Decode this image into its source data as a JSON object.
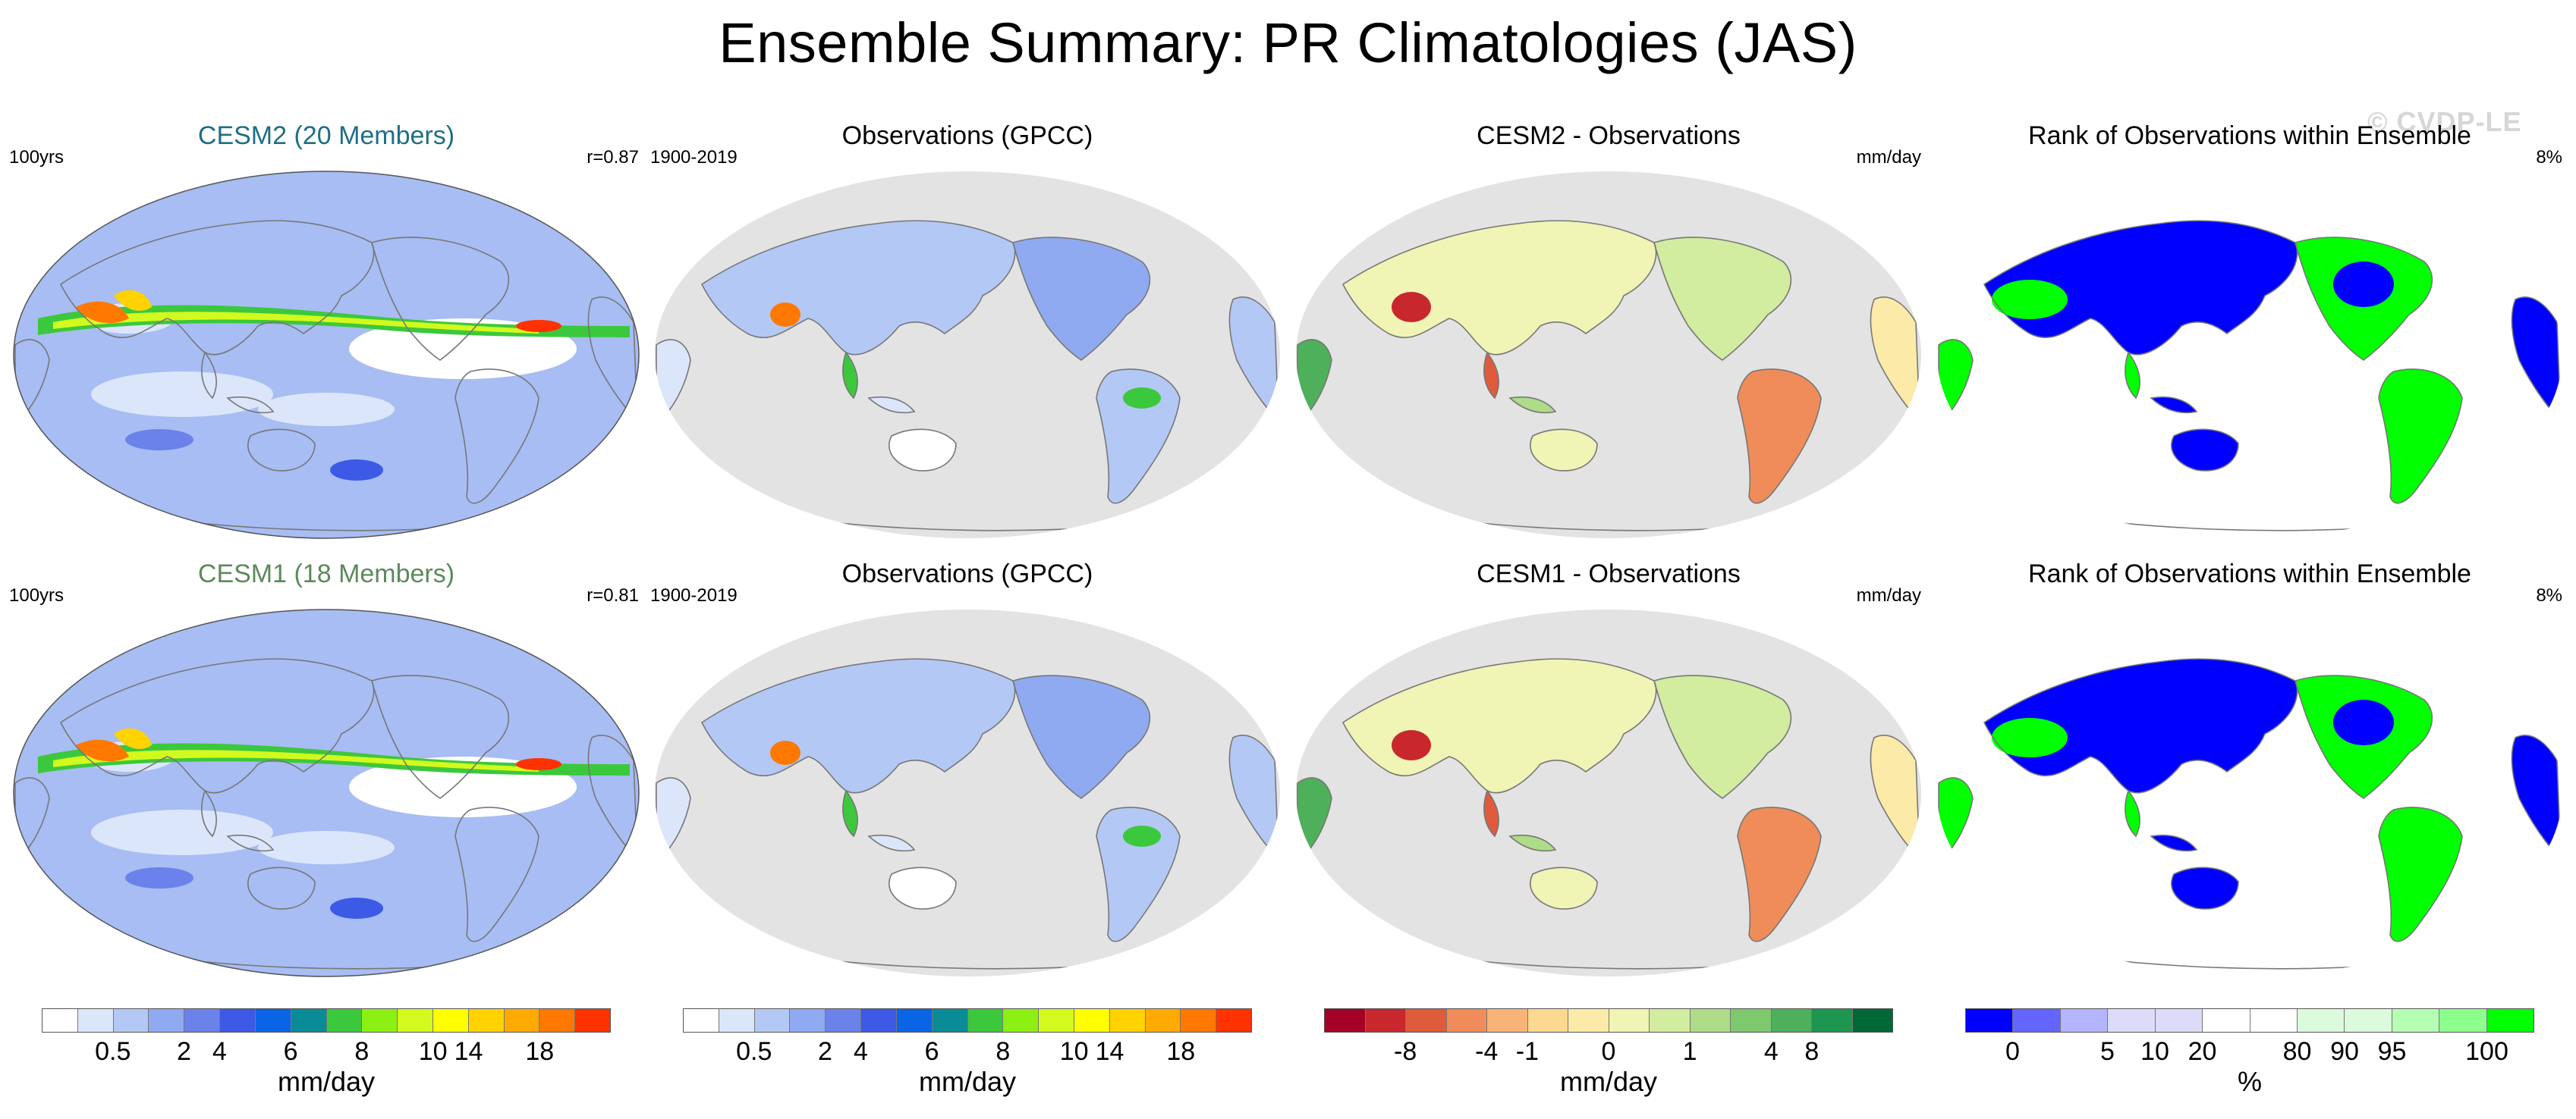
{
  "title": "Ensemble Summary: PR Climatologies (JAS)",
  "watermark": "© CVDP-LE",
  "colors": {
    "ocean_gray": "#e3e3e3",
    "coast": "#777777",
    "title_cesm2": "#1f6e86",
    "title_cesm1": "#5c8a5c"
  },
  "rows": [
    {
      "panels": [
        {
          "title": "CESM2 (20 Members)",
          "left": "100yrs",
          "right": "r=0.87",
          "kind": "model",
          "title_color": "#1f6e86"
        },
        {
          "title": "Observations (GPCC)",
          "left": "1900-2019",
          "right": "",
          "kind": "obs"
        },
        {
          "title": "CESM2 - Observations",
          "left": "",
          "right": "mm/day",
          "kind": "diff"
        },
        {
          "title": "Rank of Observations within Ensemble",
          "left": "",
          "right": "8%",
          "kind": "rank"
        }
      ]
    },
    {
      "panels": [
        {
          "title": "CESM1 (18 Members)",
          "left": "100yrs",
          "right": "r=0.81",
          "kind": "model",
          "title_color": "#5c8a5c"
        },
        {
          "title": "Observations (GPCC)",
          "left": "1900-2019",
          "right": "",
          "kind": "obs"
        },
        {
          "title": "CESM1 - Observations",
          "left": "",
          "right": "mm/day",
          "kind": "diff"
        },
        {
          "title": "Rank of Observations within Ensemble",
          "left": "",
          "right": "8%",
          "kind": "rank"
        }
      ]
    }
  ],
  "colorbars": [
    {
      "name": "precip-colorbar-1",
      "colors": [
        "#ffffff",
        "#dce6fa",
        "#b4c8f5",
        "#8faaf0",
        "#6b82eb",
        "#3c5ae6",
        "#0a64e6",
        "#0a8c96",
        "#3cc83c",
        "#8cf014",
        "#d2fa1e",
        "#ffff00",
        "#ffd200",
        "#ffaa00",
        "#ff7800",
        "#ff3200"
      ],
      "labels": [
        "0.5",
        "2",
        "4",
        "6",
        "8",
        "10",
        "14",
        "18"
      ],
      "units": "mm/day"
    },
    {
      "name": "precip-colorbar-2",
      "colors": [
        "#ffffff",
        "#dce6fa",
        "#b4c8f5",
        "#8faaf0",
        "#6b82eb",
        "#3c5ae6",
        "#0a64e6",
        "#0a8c96",
        "#3cc83c",
        "#8cf014",
        "#d2fa1e",
        "#ffff00",
        "#ffd200",
        "#ffaa00",
        "#ff7800",
        "#ff3200"
      ],
      "labels": [
        "0.5",
        "2",
        "4",
        "6",
        "8",
        "10",
        "14",
        "18"
      ],
      "units": "mm/day"
    },
    {
      "name": "difference-colorbar",
      "colors": [
        "#a50026",
        "#c8282d",
        "#e05a3c",
        "#f08c5a",
        "#f8b478",
        "#fcd890",
        "#fbeaa8",
        "#f0f4b4",
        "#d2eca0",
        "#aedc88",
        "#7ec86e",
        "#4eb05a",
        "#1e9650",
        "#006837"
      ],
      "labels": [
        "-8",
        "-4",
        "-1",
        "0",
        "1",
        "4",
        "8"
      ],
      "units": "mm/day"
    },
    {
      "name": "rank-colorbar",
      "colors": [
        "#0000ff",
        "#6464ff",
        "#b4b4ff",
        "#dcdcfa",
        "#dcdcfa",
        "#ffffff",
        "#ffffff",
        "#dcfadc",
        "#dcfadc",
        "#b4ffb4",
        "#8cff8c",
        "#00ff00"
      ],
      "labels": [
        "0",
        "5",
        "10",
        "20",
        "80",
        "90",
        "95",
        "100"
      ],
      "units": "%"
    }
  ]
}
